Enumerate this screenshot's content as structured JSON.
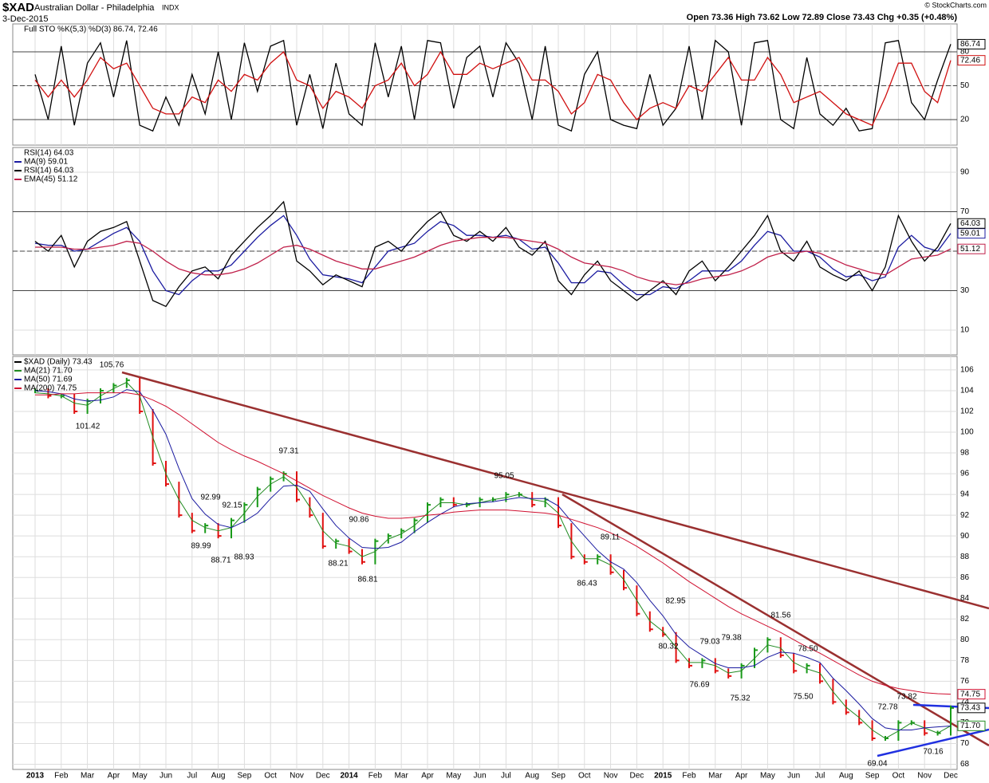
{
  "header": {
    "symbol": "$XAD",
    "name": "Australian Dollar - Philadelphia",
    "exchange": "INDX",
    "date": "3-Dec-2015",
    "quote": "Open 73.36 High 73.62 Low 72.89 Close 73.43 Chg +0.35 (+0.48%)",
    "credit": "© StockCharts.com"
  },
  "chart_data": [
    {
      "type": "line",
      "title": "Full STO %K(5,3) %D(3) 86.74, 72.46",
      "ylim": [
        -2.6,
        104.7
      ],
      "yticks": [
        20,
        50,
        80
      ],
      "overbought": 80,
      "oversold": 20,
      "midline": 50,
      "series": [
        {
          "color": "#000000",
          "end_label": "86.74",
          "values": [
            60,
            20,
            85,
            15,
            70,
            88,
            40,
            90,
            15,
            10,
            40,
            15,
            60,
            25,
            80,
            20,
            88,
            45,
            85,
            90,
            15,
            60,
            12,
            70,
            25,
            15,
            88,
            40,
            85,
            20,
            90,
            88,
            30,
            75,
            85,
            40,
            88,
            70,
            20,
            85,
            15,
            10,
            60,
            80,
            20,
            15,
            12,
            60,
            15,
            30,
            85,
            20,
            90,
            80,
            15,
            88,
            90,
            20,
            12,
            75,
            25,
            15,
            30,
            10,
            12,
            88,
            90,
            35,
            20,
            55,
            86.74
          ]
        },
        {
          "color": "#d01010",
          "end_label": "72.46",
          "values": [
            55,
            40,
            55,
            40,
            55,
            75,
            65,
            70,
            50,
            30,
            25,
            25,
            40,
            35,
            55,
            45,
            60,
            55,
            70,
            80,
            55,
            50,
            30,
            45,
            40,
            30,
            50,
            55,
            70,
            50,
            60,
            80,
            60,
            60,
            70,
            65,
            70,
            75,
            55,
            55,
            45,
            25,
            35,
            60,
            55,
            35,
            20,
            30,
            35,
            30,
            50,
            45,
            60,
            75,
            55,
            55,
            75,
            60,
            35,
            40,
            45,
            35,
            25,
            20,
            15,
            40,
            70,
            70,
            45,
            35,
            72.46
          ]
        }
      ]
    },
    {
      "type": "line",
      "title": "RSI(14) 64.03",
      "ylim": [
        -2.5,
        102.5
      ],
      "yticks": [
        10,
        30,
        50,
        70,
        90
      ],
      "overbought": 70,
      "oversold": 30,
      "midline": 50,
      "series": [
        {
          "name": "MA(9) 59.01",
          "color": "#1a1aa0",
          "end_label": "59.01",
          "values": [
            54,
            53,
            53,
            50,
            51,
            55,
            59,
            62,
            55,
            40,
            30,
            28,
            35,
            40,
            40,
            43,
            50,
            57,
            63,
            68,
            58,
            46,
            38,
            37,
            36,
            34,
            42,
            50,
            52,
            54,
            60,
            65,
            63,
            58,
            58,
            57,
            58,
            56,
            51,
            52,
            44,
            34,
            34,
            40,
            39,
            33,
            28,
            28,
            32,
            31,
            35,
            40,
            40,
            40,
            45,
            53,
            60,
            58,
            50,
            50,
            47,
            41,
            37,
            38,
            35,
            37,
            52,
            58,
            52,
            50,
            59.01
          ]
        },
        {
          "name": "RSI(14) 64.03",
          "color": "#000000",
          "end_label": "64.03",
          "values": [
            55,
            50,
            58,
            42,
            55,
            60,
            62,
            65,
            45,
            25,
            22,
            32,
            40,
            42,
            36,
            48,
            55,
            62,
            68,
            75,
            45,
            40,
            33,
            38,
            35,
            32,
            52,
            55,
            50,
            58,
            65,
            70,
            58,
            55,
            60,
            55,
            62,
            52,
            48,
            55,
            35,
            28,
            38,
            45,
            35,
            30,
            25,
            30,
            35,
            28,
            40,
            45,
            35,
            42,
            50,
            58,
            68,
            50,
            45,
            55,
            42,
            38,
            35,
            40,
            30,
            42,
            68,
            55,
            45,
            52,
            64.03
          ]
        },
        {
          "name": "EMA(45) 51.12",
          "color": "#c0204a",
          "end_label": "51.12",
          "values": [
            52,
            52,
            52,
            51,
            51,
            52,
            53,
            55,
            54,
            50,
            45,
            41,
            39,
            38,
            38,
            39,
            41,
            44,
            48,
            52,
            53,
            51,
            48,
            45,
            43,
            41,
            41,
            43,
            45,
            47,
            50,
            53,
            55,
            56,
            57,
            57,
            57,
            56,
            55,
            54,
            51,
            47,
            44,
            43,
            42,
            40,
            37,
            35,
            34,
            33,
            34,
            36,
            37,
            38,
            40,
            43,
            47,
            49,
            49,
            50,
            49,
            46,
            43,
            41,
            39,
            38,
            42,
            46,
            47,
            48,
            51.12
          ]
        }
      ]
    },
    {
      "type": "line",
      "ylim": [
        67.5,
        107.3
      ],
      "yticks": [
        68,
        70,
        72,
        74,
        76,
        78,
        80,
        82,
        84,
        86,
        88,
        90,
        92,
        94,
        96,
        98,
        100,
        102,
        104,
        106
      ],
      "categories": [
        "2013",
        null,
        "Feb",
        null,
        "Mar",
        null,
        "Apr",
        null,
        "May",
        null,
        "Jun",
        null,
        "Jul",
        null,
        "Aug",
        null,
        "Sep",
        null,
        "Oct",
        null,
        "Nov",
        null,
        "Dec",
        null,
        "2014",
        null,
        "Feb",
        null,
        "Mar",
        null,
        "Apr",
        null,
        "May",
        null,
        "Jun",
        null,
        "Jul",
        null,
        "Aug",
        null,
        "Sep",
        null,
        "Oct",
        null,
        "Nov",
        null,
        "Dec",
        null,
        "2015",
        null,
        "Feb",
        null,
        "Mar",
        null,
        "Apr",
        null,
        "May",
        null,
        "Jun",
        null,
        "Jul",
        null,
        "Aug",
        null,
        "Sep",
        null,
        "Oct",
        null,
        "Nov",
        null,
        "Dec"
      ],
      "up_color": "#189a18",
      "down_color": "#e01010",
      "series": [
        {
          "name": "$XAD (Daily) 73.43",
          "style": "price-bars",
          "color": "#000000",
          "end_label": "73.43",
          "values": [
            104,
            103.5,
            103.5,
            102,
            103,
            104,
            104.5,
            105,
            102,
            97,
            95,
            92,
            90.5,
            91,
            90,
            91.5,
            93,
            94.5,
            95.5,
            96,
            93.5,
            92,
            89,
            89.5,
            88.5,
            87.5,
            89.5,
            90,
            90.5,
            91.5,
            93,
            93.5,
            93,
            93,
            93.5,
            93.5,
            94,
            94,
            93,
            93.5,
            91,
            88,
            87.5,
            88,
            86.5,
            85,
            82.5,
            81,
            80.5,
            78,
            77.5,
            78,
            77,
            76.5,
            77.5,
            79,
            80,
            78.5,
            77,
            77.5,
            76,
            74,
            73,
            72,
            70.5,
            70.5,
            72,
            72,
            71,
            71,
            73.43
          ]
        },
        {
          "name": "MA(21) 71.70",
          "color": "#208a20",
          "end_label": "71.70",
          "values": [
            103.8,
            103.7,
            103.5,
            102.8,
            102.6,
            103.5,
            104.2,
            104.8,
            103.5,
            99.5,
            96,
            93.5,
            91.5,
            90.8,
            90.5,
            90.8,
            92.2,
            93.8,
            95,
            95.7,
            94.7,
            92.8,
            90.5,
            89.3,
            89,
            88,
            88.5,
            89.7,
            90.2,
            91,
            92.2,
            93.2,
            93.2,
            93,
            93.2,
            93.5,
            93.7,
            94,
            93.5,
            93.3,
            92.2,
            89.5,
            87.8,
            87.8,
            87.2,
            85.8,
            83.8,
            81.8,
            80.8,
            79.3,
            77.8,
            77.8,
            77.5,
            76.8,
            77,
            78.2,
            79.5,
            79.2,
            77.8,
            77.2,
            76.8,
            75,
            73.5,
            72.5,
            71.3,
            70.5,
            71.2,
            72,
            71.5,
            71,
            71.7
          ]
        },
        {
          "name": "MA(50) 71.69",
          "color": "#1a1aa0",
          "values": [
            104,
            103.9,
            103.7,
            103.2,
            103,
            103.1,
            103.4,
            104.1,
            103.9,
            102.1,
            99.8,
            96.5,
            93.6,
            92.1,
            91.1,
            90.8,
            91.4,
            92.2,
            93.6,
            94.8,
            94.9,
            94.3,
            92.6,
            91,
            89.8,
            88.9,
            88.8,
            88.9,
            89.4,
            90.4,
            91.3,
            92.1,
            92.8,
            93.1,
            93.2,
            93.3,
            93.5,
            93.7,
            93.6,
            93.6,
            92.9,
            91.4,
            90,
            88.6,
            87.5,
            86.8,
            85.5,
            83.8,
            82.3,
            80.5,
            79.3,
            78.5,
            77.7,
            77.3,
            77.3,
            77.5,
            78.3,
            78.8,
            78.7,
            78.3,
            77.8,
            76.3,
            75.1,
            73.8,
            72.4,
            71.5,
            71.3,
            71.3,
            71.5,
            71.6,
            71.69
          ]
        },
        {
          "name": "MA(200) 74.75",
          "color": "#d01030",
          "end_label": "74.75",
          "values": [
            103.6,
            103.6,
            103.7,
            103.7,
            103.8,
            103.8,
            103.8,
            103.8,
            103.6,
            103.1,
            102.5,
            101.7,
            100.8,
            99.9,
            99,
            98.3,
            97.7,
            97.2,
            96.6,
            96,
            95.3,
            94.6,
            93.9,
            93.3,
            92.7,
            92.2,
            91.9,
            91.7,
            91.7,
            91.8,
            92,
            92.1,
            92.3,
            92.4,
            92.5,
            92.5,
            92.5,
            92.4,
            92.3,
            92.2,
            92,
            91.6,
            91.2,
            90.8,
            90.3,
            89.7,
            89,
            88.2,
            87.4,
            86.5,
            85.6,
            84.8,
            84,
            83.2,
            82.5,
            81.9,
            81.3,
            80.7,
            80,
            79.3,
            78.7,
            78,
            77.3,
            76.6,
            76,
            75.6,
            75.3,
            75.1,
            74.9,
            74.8,
            74.75
          ]
        }
      ],
      "annotations": [
        "105.76",
        "101.42",
        "97.31",
        "92.99",
        "92.15",
        "89.99",
        "88.71",
        "88.93",
        "90.86",
        "88.21",
        "86.81",
        "95.05",
        "89.11",
        "86.43",
        "82.95",
        "80.32",
        "79.03",
        "79.38",
        "76.69",
        "75.32",
        "81.56",
        "78.50",
        "75.50",
        "72.78",
        "73.82",
        "69.04",
        "70.16"
      ]
    }
  ]
}
